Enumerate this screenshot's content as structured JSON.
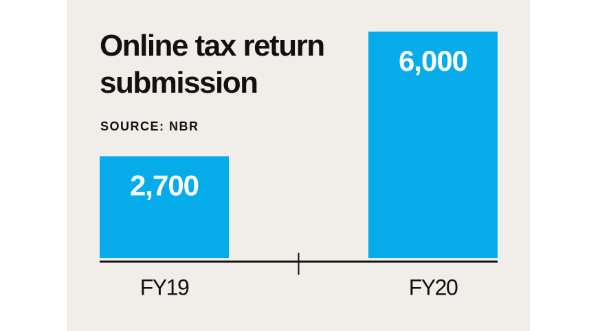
{
  "chart_data": {
    "type": "bar",
    "title": "Online tax return submission",
    "subtitle": "SOURCE: NBR",
    "categories": [
      "FY19",
      "FY20"
    ],
    "values": [
      2700,
      6000
    ],
    "value_labels": [
      "2,700",
      "6,000"
    ],
    "color": "#06acea"
  }
}
